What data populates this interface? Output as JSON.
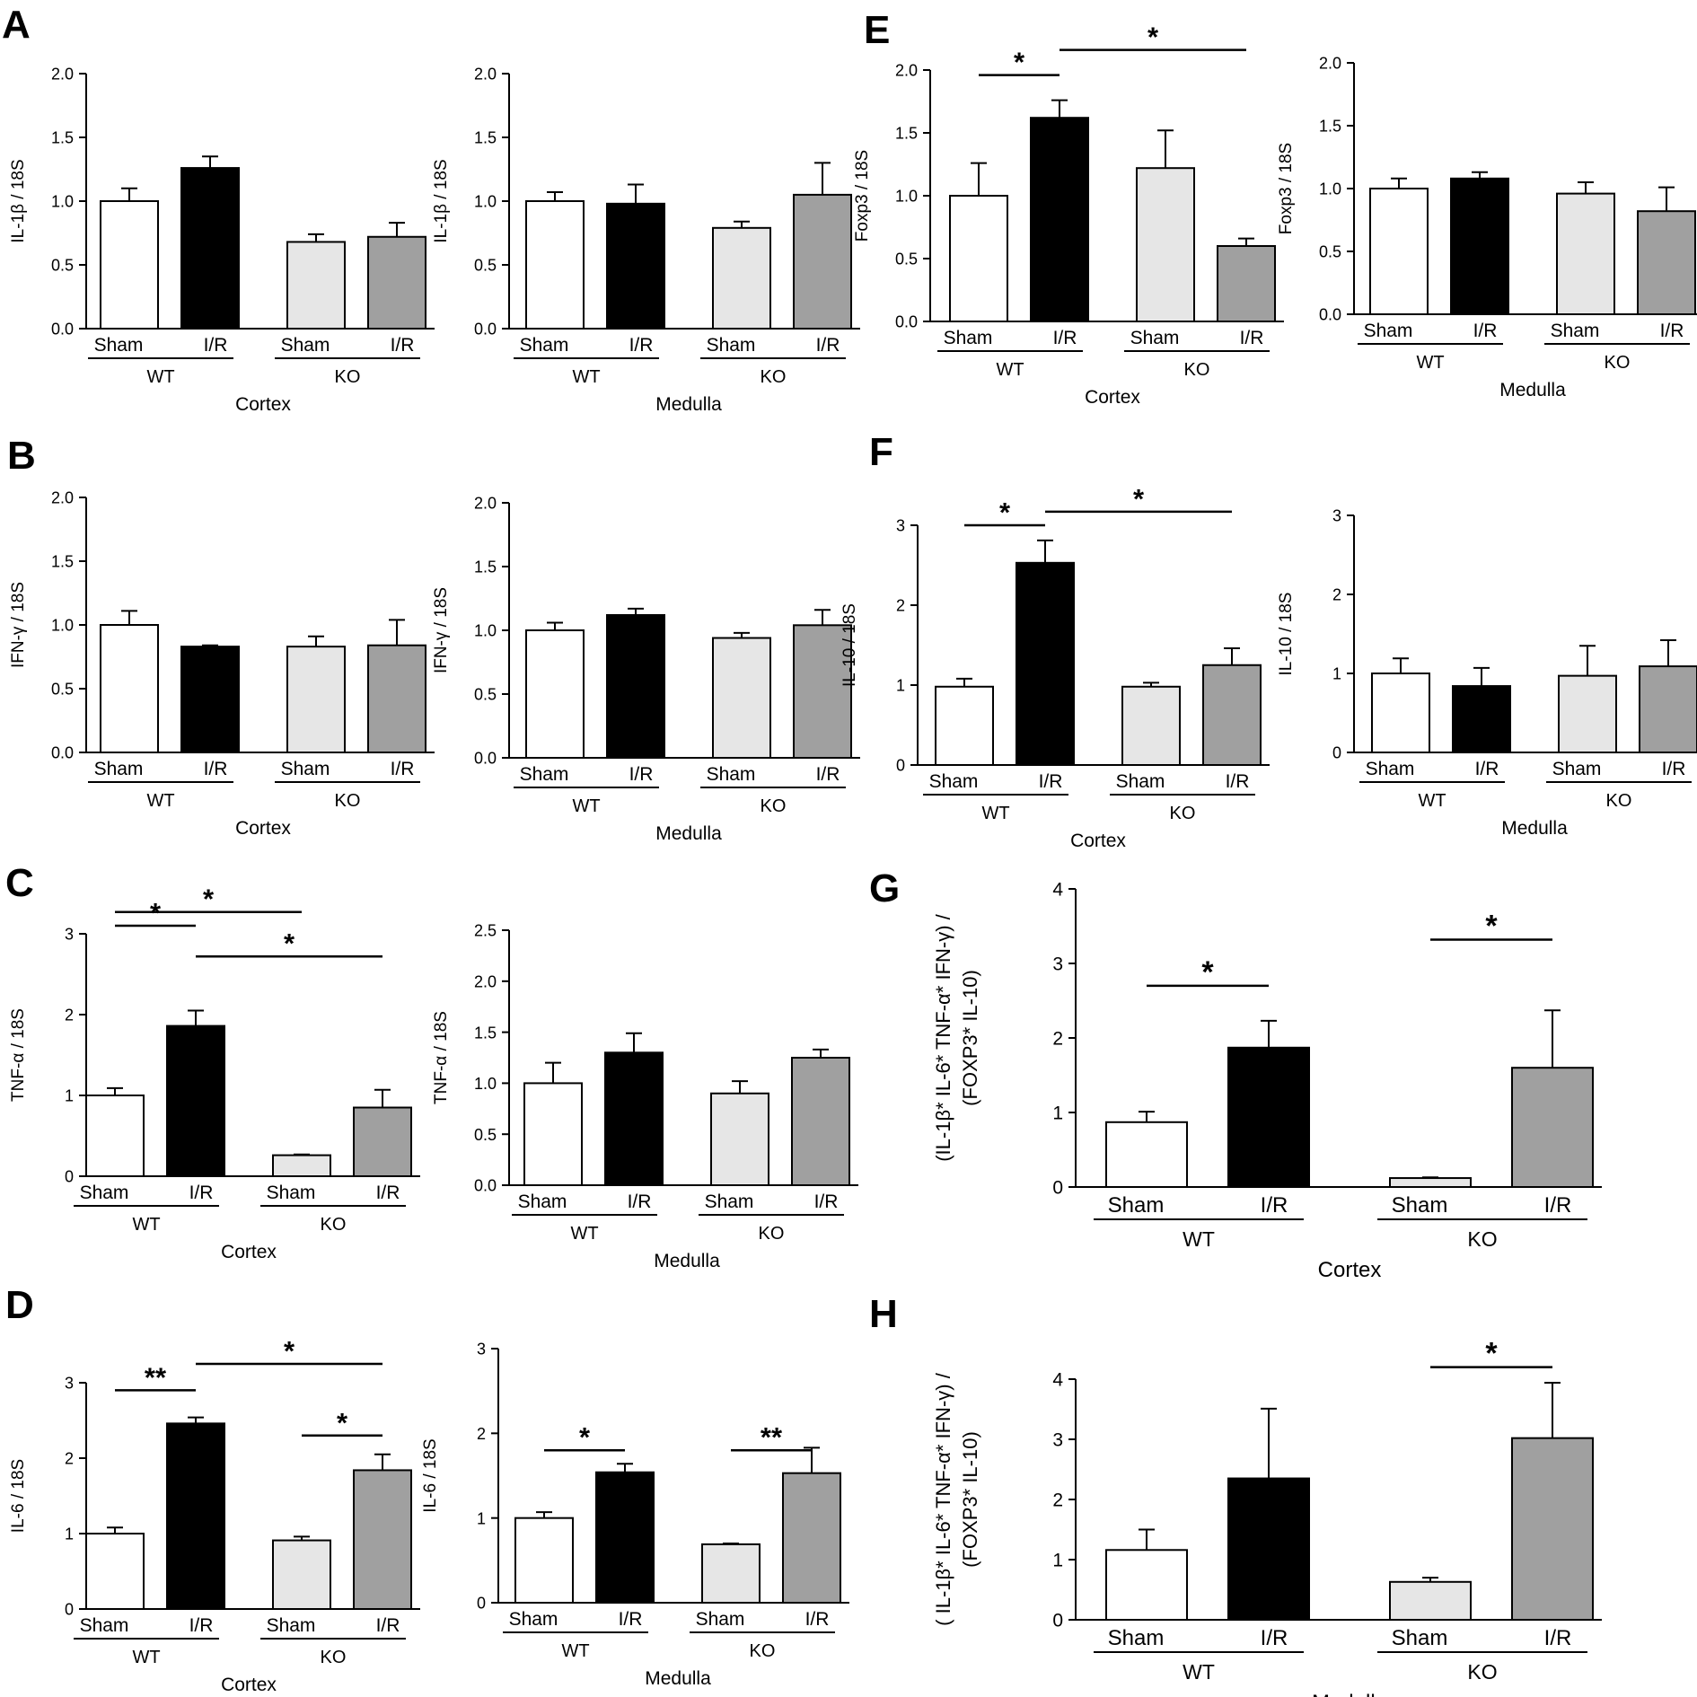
{
  "colors": {
    "wt_sham": "#ffffff",
    "wt_ir": "#000000",
    "ko_sham": "#e6e6e6",
    "ko_ir": "#a0a0a0",
    "stroke": "#000000"
  },
  "panel_labels": [
    "A",
    "B",
    "C",
    "D",
    "E",
    "F",
    "G",
    "H"
  ],
  "chart_data": [
    {
      "id": "A-cortex",
      "type": "bar",
      "panel": "A",
      "categories": [
        "Sham",
        "I/R",
        "Sham",
        "I/R"
      ],
      "groups": [
        "WT",
        "KO"
      ],
      "region": "Cortex",
      "ylabel": "IL-1β / 18S",
      "ylim": [
        0,
        2
      ],
      "yticks": [
        "0.0",
        "0.5",
        "1.0",
        "1.5",
        "2.0"
      ],
      "values": [
        1.0,
        1.26,
        0.68,
        0.72
      ],
      "errors": [
        0.1,
        0.09,
        0.06,
        0.11
      ],
      "significance": []
    },
    {
      "id": "A-medulla",
      "type": "bar",
      "panel": "A",
      "categories": [
        "Sham",
        "I/R",
        "Sham",
        "I/R"
      ],
      "groups": [
        "WT",
        "KO"
      ],
      "region": "Medulla",
      "ylabel": "IL-1β / 18S",
      "ylim": [
        0,
        2
      ],
      "yticks": [
        "0.0",
        "0.5",
        "1.0",
        "1.5",
        "2.0"
      ],
      "values": [
        1.0,
        0.98,
        0.79,
        1.05
      ],
      "errors": [
        0.07,
        0.15,
        0.05,
        0.25
      ],
      "significance": []
    },
    {
      "id": "B-cortex",
      "type": "bar",
      "panel": "B",
      "categories": [
        "Sham",
        "I/R",
        "Sham",
        "I/R"
      ],
      "groups": [
        "WT",
        "KO"
      ],
      "region": "Cortex",
      "ylabel": "IFN-γ / 18S",
      "ylim": [
        0,
        2
      ],
      "yticks": [
        "0.0",
        "0.5",
        "1.0",
        "1.5",
        "2.0"
      ],
      "values": [
        1.0,
        0.83,
        0.83,
        0.84
      ],
      "errors": [
        0.11,
        0.01,
        0.08,
        0.2
      ],
      "significance": []
    },
    {
      "id": "B-medulla",
      "type": "bar",
      "panel": "B",
      "categories": [
        "Sham",
        "I/R",
        "Sham",
        "I/R"
      ],
      "groups": [
        "WT",
        "KO"
      ],
      "region": "Medulla",
      "ylabel": "IFN-γ / 18S",
      "ylim": [
        0,
        2
      ],
      "yticks": [
        "0.0",
        "0.5",
        "1.0",
        "1.5",
        "2.0"
      ],
      "values": [
        1.0,
        1.12,
        0.94,
        1.04
      ],
      "errors": [
        0.06,
        0.05,
        0.04,
        0.12
      ],
      "significance": []
    },
    {
      "id": "C-cortex",
      "type": "bar",
      "panel": "C",
      "categories": [
        "Sham",
        "I/R",
        "Sham",
        "I/R"
      ],
      "groups": [
        "WT",
        "KO"
      ],
      "region": "Cortex",
      "ylabel": "TNF-α / 18S",
      "ylim": [
        0,
        3
      ],
      "yticks": [
        "0",
        "1",
        "2",
        "3"
      ],
      "values": [
        1.0,
        1.86,
        0.26,
        0.85
      ],
      "errors": [
        0.09,
        0.19,
        0.01,
        0.22
      ],
      "significance": [
        {
          "from": 0,
          "to": 1,
          "label": "*",
          "level": 3.1
        },
        {
          "from": 1,
          "to": 3,
          "label": "*",
          "level": 2.72
        },
        {
          "from": 0,
          "to": 2,
          "label": "*",
          "level": 3.27
        }
      ]
    },
    {
      "id": "C-medulla",
      "type": "bar",
      "panel": "C",
      "categories": [
        "Sham",
        "I/R",
        "Sham",
        "I/R"
      ],
      "groups": [
        "WT",
        "KO"
      ],
      "region": "Medulla",
      "ylabel": "TNF-α / 18S",
      "ylim": [
        0,
        2.5
      ],
      "yticks": [
        "0.0",
        "0.5",
        "1.0",
        "1.5",
        "2.0",
        "2.5"
      ],
      "values": [
        1.0,
        1.3,
        0.9,
        1.25
      ],
      "errors": [
        0.2,
        0.19,
        0.12,
        0.08
      ],
      "significance": []
    },
    {
      "id": "D-cortex",
      "type": "bar",
      "panel": "D",
      "categories": [
        "Sham",
        "I/R",
        "Sham",
        "I/R"
      ],
      "groups": [
        "WT",
        "KO"
      ],
      "region": "Cortex",
      "ylabel": "IL-6 / 18S",
      "ylim": [
        0,
        3
      ],
      "yticks": [
        "0",
        "1",
        "2",
        "3"
      ],
      "values": [
        1.0,
        2.46,
        0.91,
        1.84
      ],
      "errors": [
        0.08,
        0.08,
        0.05,
        0.21
      ],
      "significance": [
        {
          "from": 0,
          "to": 1,
          "label": "**",
          "level": 2.9
        },
        {
          "from": 1,
          "to": 3,
          "label": "*",
          "level": 3.25
        },
        {
          "from": 2,
          "to": 3,
          "label": "*",
          "level": 2.3
        }
      ]
    },
    {
      "id": "D-medulla",
      "type": "bar",
      "panel": "D",
      "categories": [
        "Sham",
        "I/R",
        "Sham",
        "I/R"
      ],
      "groups": [
        "WT",
        "KO"
      ],
      "region": "Medulla",
      "ylabel": "IL-6 / 18S",
      "ylim": [
        0,
        3
      ],
      "yticks": [
        "0",
        "1",
        "2",
        "3"
      ],
      "values": [
        1.0,
        1.54,
        0.69,
        1.53
      ],
      "errors": [
        0.07,
        0.1,
        0.01,
        0.3
      ],
      "significance": [
        {
          "from": 0,
          "to": 1,
          "label": "*",
          "level": 1.8
        },
        {
          "from": 2,
          "to": 3,
          "label": "**",
          "level": 1.8
        }
      ]
    },
    {
      "id": "E-cortex",
      "type": "bar",
      "panel": "E",
      "categories": [
        "Sham",
        "I/R",
        "Sham",
        "I/R"
      ],
      "groups": [
        "WT",
        "KO"
      ],
      "region": "Cortex",
      "ylabel": "Foxp3 / 18S",
      "ylim": [
        0,
        2
      ],
      "yticks": [
        "0.0",
        "0.5",
        "1.0",
        "1.5",
        "2.0"
      ],
      "values": [
        1.0,
        1.62,
        1.22,
        0.6
      ],
      "errors": [
        0.26,
        0.14,
        0.3,
        0.06
      ],
      "significance": [
        {
          "from": 0,
          "to": 1,
          "label": "*",
          "level": 1.96
        },
        {
          "from": 1,
          "to": 3,
          "label": "*",
          "level": 2.16
        }
      ]
    },
    {
      "id": "E-medulla",
      "type": "bar",
      "panel": "E",
      "categories": [
        "Sham",
        "I/R",
        "Sham",
        "I/R"
      ],
      "groups": [
        "WT",
        "KO"
      ],
      "region": "Medulla",
      "ylabel": "Foxp3 / 18S",
      "ylim": [
        0,
        2
      ],
      "yticks": [
        "0.0",
        "0.5",
        "1.0",
        "1.5",
        "2.0"
      ],
      "values": [
        1.0,
        1.08,
        0.96,
        0.82
      ],
      "errors": [
        0.08,
        0.05,
        0.09,
        0.19
      ],
      "significance": []
    },
    {
      "id": "F-cortex",
      "type": "bar",
      "panel": "F",
      "categories": [
        "Sham",
        "I/R",
        "Sham",
        "I/R"
      ],
      "groups": [
        "WT",
        "KO"
      ],
      "region": "Cortex",
      "ylabel": "IL-10 / 18S",
      "ylim": [
        0,
        3
      ],
      "yticks": [
        "0",
        "1",
        "2",
        "3"
      ],
      "values": [
        0.98,
        2.53,
        0.98,
        1.25
      ],
      "errors": [
        0.1,
        0.28,
        0.05,
        0.21
      ],
      "significance": [
        {
          "from": 0,
          "to": 1,
          "label": "*",
          "level": 3.0
        },
        {
          "from": 1,
          "to": 3,
          "label": "*",
          "level": 3.17
        }
      ]
    },
    {
      "id": "F-medulla",
      "type": "bar",
      "panel": "F",
      "categories": [
        "Sham",
        "I/R",
        "Sham",
        "I/R"
      ],
      "groups": [
        "WT",
        "KO"
      ],
      "region": "Medulla",
      "ylabel": "IL-10 / 18S",
      "ylim": [
        0,
        3
      ],
      "yticks": [
        "0",
        "1",
        "2",
        "3"
      ],
      "values": [
        1.0,
        0.84,
        0.97,
        1.09
      ],
      "errors": [
        0.19,
        0.23,
        0.38,
        0.33
      ],
      "significance": []
    },
    {
      "id": "G-cortex",
      "type": "bar",
      "panel": "G",
      "categories": [
        "Sham",
        "I/R",
        "Sham",
        "I/R"
      ],
      "groups": [
        "WT",
        "KO"
      ],
      "region": "Cortex",
      "ylabel_lines": [
        "(IL-1β* IL-6* TNF-α* IFN-γ) /",
        "(FOXP3* IL-10)"
      ],
      "ylim": [
        0,
        4
      ],
      "yticks": [
        "0",
        "1",
        "2",
        "3",
        "4"
      ],
      "values": [
        0.87,
        1.87,
        0.12,
        1.6
      ],
      "errors": [
        0.14,
        0.36,
        0.01,
        0.77
      ],
      "significance": [
        {
          "from": 0,
          "to": 1,
          "label": "*",
          "level": 2.7
        },
        {
          "from": 2,
          "to": 3,
          "label": "*",
          "level": 3.32
        }
      ]
    },
    {
      "id": "H-medulla",
      "type": "bar",
      "panel": "H",
      "categories": [
        "Sham",
        "I/R",
        "Sham",
        "I/R"
      ],
      "groups": [
        "WT",
        "KO"
      ],
      "region": "Medulla",
      "ylabel_lines": [
        "( IL-1β* IL-6* TNF-α* IFN-γ) /",
        "(FOXP3* IL-10)"
      ],
      "ylim": [
        0,
        4
      ],
      "yticks": [
        "0",
        "1",
        "2",
        "3",
        "4"
      ],
      "values": [
        1.16,
        2.35,
        0.63,
        3.02
      ],
      "errors": [
        0.34,
        1.16,
        0.07,
        0.92
      ],
      "significance": [
        {
          "from": 2,
          "to": 3,
          "label": "*",
          "level": 4.2
        }
      ]
    }
  ]
}
